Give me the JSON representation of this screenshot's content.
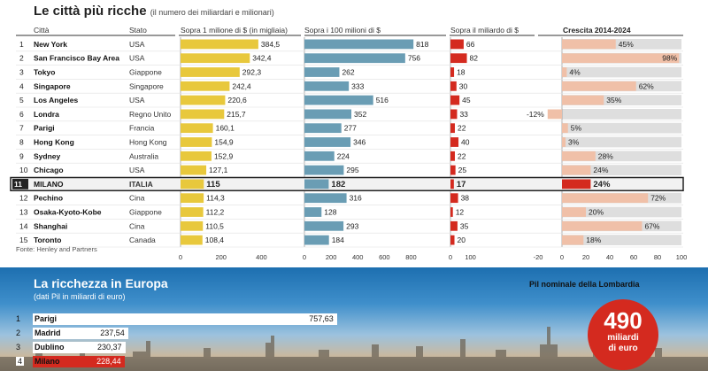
{
  "title": "Le città più ricche",
  "subtitle": "(il numero dei miliardari e milionari)",
  "headers": {
    "city": "Città",
    "state": "Stato",
    "col1": "Sopra 1 milione di $ (in migliaia)",
    "col2": "Sopra i 100 milioni di $",
    "col3": "Sopra il miliardo di $",
    "col4": "Crescita 2014-2024"
  },
  "source": "Fonte: Henley and Partners",
  "colors": {
    "yellow": "#e8c83c",
    "blue": "#6a9db4",
    "red": "#d42a1f",
    "salmon": "#f0c0a8",
    "grey": "#dedede"
  },
  "chart_data": [
    {
      "type": "table",
      "columns": [
        "Rank",
        "Città",
        "Stato",
        "Sopra 1 milione di $ (in migliaia)",
        "Sopra i 100 milioni di $",
        "Sopra il miliardo di $",
        "Crescita 2014-2024"
      ],
      "rows": [
        {
          "rank": "1",
          "city": "New York",
          "state": "USA",
          "m1": "384,5",
          "m100": "818",
          "b1": "66",
          "growth": "45%",
          "m1v": 384.5,
          "m100v": 818,
          "b1v": 66,
          "gv": 45
        },
        {
          "rank": "2",
          "city": "San Francisco Bay Area",
          "state": "USA",
          "m1": "342,4",
          "m100": "756",
          "b1": "82",
          "growth": "98%",
          "m1v": 342.4,
          "m100v": 756,
          "b1v": 82,
          "gv": 98
        },
        {
          "rank": "3",
          "city": "Tokyo",
          "state": "Giappone",
          "m1": "292,3",
          "m100": "262",
          "b1": "18",
          "growth": "4%",
          "m1v": 292.3,
          "m100v": 262,
          "b1v": 18,
          "gv": 4
        },
        {
          "rank": "4",
          "city": "Singapore",
          "state": "Singapore",
          "m1": "242,4",
          "m100": "333",
          "b1": "30",
          "growth": "62%",
          "m1v": 242.4,
          "m100v": 333,
          "b1v": 30,
          "gv": 62
        },
        {
          "rank": "5",
          "city": "Los Angeles",
          "state": "USA",
          "m1": "220,6",
          "m100": "516",
          "b1": "45",
          "growth": "35%",
          "m1v": 220.6,
          "m100v": 516,
          "b1v": 45,
          "gv": 35
        },
        {
          "rank": "6",
          "city": "Londra",
          "state": "Regno Unito",
          "m1": "215,7",
          "m100": "352",
          "b1": "33",
          "growth": "-12%",
          "m1v": 215.7,
          "m100v": 352,
          "b1v": 33,
          "gv": -12
        },
        {
          "rank": "7",
          "city": "Parigi",
          "state": "Francia",
          "m1": "160,1",
          "m100": "277",
          "b1": "22",
          "growth": "5%",
          "m1v": 160.1,
          "m100v": 277,
          "b1v": 22,
          "gv": 5
        },
        {
          "rank": "8",
          "city": "Hong Kong",
          "state": "Hong Kong",
          "m1": "154,9",
          "m100": "346",
          "b1": "40",
          "growth": "3%",
          "m1v": 154.9,
          "m100v": 346,
          "b1v": 40,
          "gv": 3
        },
        {
          "rank": "9",
          "city": "Sydney",
          "state": "Australia",
          "m1": "152,9",
          "m100": "224",
          "b1": "22",
          "growth": "28%",
          "m1v": 152.9,
          "m100v": 224,
          "b1v": 22,
          "gv": 28
        },
        {
          "rank": "10",
          "city": "Chicago",
          "state": "USA",
          "m1": "127,1",
          "m100": "295",
          "b1": "25",
          "growth": "24%",
          "m1v": 127.1,
          "m100v": 295,
          "b1v": 25,
          "gv": 24
        },
        {
          "rank": "11",
          "city": "MILANO",
          "state": "ITALIA",
          "m1": "115",
          "m100": "182",
          "b1": "17",
          "growth": "24%",
          "m1v": 115,
          "m100v": 182,
          "b1v": 17,
          "gv": 24,
          "highlight": true
        },
        {
          "rank": "12",
          "city": "Pechino",
          "state": "Cina",
          "m1": "114,3",
          "m100": "316",
          "b1": "38",
          "growth": "72%",
          "m1v": 114.3,
          "m100v": 316,
          "b1v": 38,
          "gv": 72
        },
        {
          "rank": "13",
          "city": "Osaka-Kyoto-Kobe",
          "state": "Giappone",
          "m1": "112,2",
          "m100": "128",
          "b1": "12",
          "growth": "20%",
          "m1v": 112.2,
          "m100v": 128,
          "b1v": 12,
          "gv": 20
        },
        {
          "rank": "14",
          "city": "Shanghai",
          "state": "Cina",
          "m1": "110,5",
          "m100": "293",
          "b1": "35",
          "growth": "67%",
          "m1v": 110.5,
          "m100v": 293,
          "b1v": 35,
          "gv": 67
        },
        {
          "rank": "15",
          "city": "Toronto",
          "state": "Canada",
          "m1": "108,4",
          "m100": "184",
          "b1": "20",
          "growth": "18%",
          "m1v": 108.4,
          "m100v": 184,
          "b1v": 20,
          "gv": 18
        }
      ],
      "axes": {
        "m1": {
          "ticks": [
            "0",
            "200",
            "400"
          ],
          "xlim": [
            0,
            420
          ]
        },
        "m100": {
          "ticks": [
            "0",
            "200",
            "400",
            "600",
            "800"
          ],
          "xlim": [
            0,
            850
          ]
        },
        "b1": {
          "ticks": [
            "0",
            "100"
          ],
          "xlim": [
            0,
            230
          ]
        },
        "growth": {
          "ticks": [
            "-20",
            "0",
            "20",
            "40",
            "60",
            "80",
            "100"
          ],
          "xlim": [
            -20,
            100
          ]
        }
      }
    },
    {
      "type": "bar",
      "title": "La ricchezza in Europa",
      "subtitle": "(dati Pil in miliardi di euro)",
      "categories": [
        "Parigi",
        "Madrid",
        "Dublino",
        "Milano"
      ],
      "ranks": [
        "1",
        "2",
        "3",
        "4"
      ],
      "values": [
        757.63,
        237.54,
        230.37,
        228.44
      ],
      "labels": [
        "757,63",
        "237,54",
        "230,37",
        "228,44"
      ],
      "xlim": [
        0,
        800
      ]
    }
  ],
  "pil": {
    "label": "Pil nominale della Lombardia",
    "value": "490",
    "unit_line1": "miliardi",
    "unit_line2": "di euro"
  }
}
